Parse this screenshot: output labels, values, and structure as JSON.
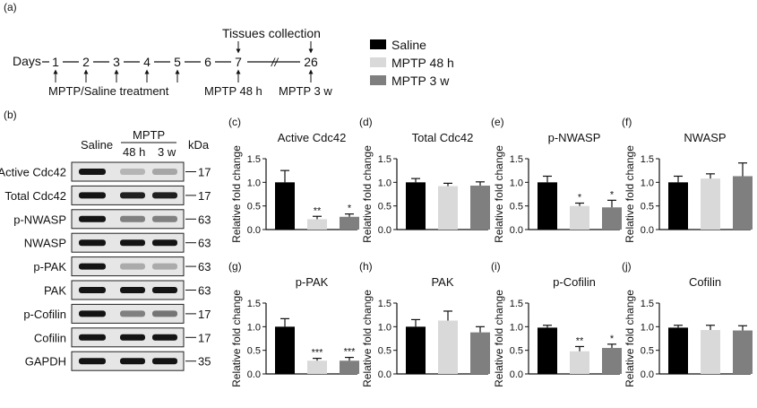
{
  "colors": {
    "saline": "#000000",
    "mptp48": "#d9d9d9",
    "mptp3w": "#7f7f7f",
    "axis": "#111111"
  },
  "timeline": {
    "panel_label": "(a)",
    "days_label": "Days",
    "days": [
      "1",
      "2",
      "3",
      "4",
      "5",
      "6",
      "7",
      "26"
    ],
    "break_mark": "//",
    "tissues_label": "Tissues collection",
    "treatment_label": "MPTP/Saline treatment",
    "mark_48h": "MPTP 48 h",
    "mark_3w": "MPTP 3 w"
  },
  "legend": [
    {
      "label": "Saline",
      "color": "#000000"
    },
    {
      "label": "MPTP 48 h",
      "color": "#d9d9d9"
    },
    {
      "label": "MPTP 3 w",
      "color": "#7f7f7f"
    }
  ],
  "blot": {
    "panel_label": "(b)",
    "col_saline": "Saline",
    "col_group": "MPTP",
    "col_48h": "48 h",
    "col_3w": "3 w",
    "kda_label": "kDa",
    "rows": [
      {
        "label": "Active Cdc42",
        "kda": "17",
        "intensity": [
          1.0,
          0.25,
          0.32
        ]
      },
      {
        "label": "Total Cdc42",
        "kda": "17",
        "intensity": [
          1.0,
          0.95,
          0.95
        ]
      },
      {
        "label": "p-NWASP",
        "kda": "63",
        "intensity": [
          1.0,
          0.5,
          0.5
        ]
      },
      {
        "label": "NWASP",
        "kda": "63",
        "intensity": [
          1.0,
          1.0,
          1.0
        ]
      },
      {
        "label": "p-PAK",
        "kda": "63",
        "intensity": [
          1.0,
          0.3,
          0.3
        ]
      },
      {
        "label": "PAK",
        "kda": "63",
        "intensity": [
          1.0,
          1.0,
          1.0
        ]
      },
      {
        "label": "p-Cofilin",
        "kda": "17",
        "intensity": [
          1.0,
          0.5,
          0.55
        ]
      },
      {
        "label": "Cofilin",
        "kda": "17",
        "intensity": [
          1.0,
          1.0,
          1.0
        ]
      },
      {
        "label": "GAPDH",
        "kda": "35",
        "intensity": [
          1.0,
          1.0,
          1.0
        ]
      }
    ]
  },
  "chart_data": [
    {
      "panel": "(c)",
      "type": "bar",
      "title": "Active Cdc42",
      "ylabel": "Relative fold change",
      "ylim": [
        0,
        1.5
      ],
      "yticks": [
        "0.0",
        "0.5",
        "1.0",
        "1.5"
      ],
      "categories": [
        "Saline",
        "MPTP 48 h",
        "MPTP 3 w"
      ],
      "values": [
        1.0,
        0.22,
        0.27
      ],
      "errors": [
        0.25,
        0.06,
        0.06
      ],
      "significance": [
        "",
        "**",
        "*"
      ]
    },
    {
      "panel": "(d)",
      "type": "bar",
      "title": "Total Cdc42",
      "ylabel": "Relative fold change",
      "ylim": [
        0,
        1.5
      ],
      "yticks": [
        "0.0",
        "0.5",
        "1.0",
        "1.5"
      ],
      "categories": [
        "Saline",
        "MPTP 48 h",
        "MPTP 3 w"
      ],
      "values": [
        1.0,
        0.92,
        0.93
      ],
      "errors": [
        0.08,
        0.06,
        0.08
      ],
      "significance": [
        "",
        "",
        ""
      ]
    },
    {
      "panel": "(e)",
      "type": "bar",
      "title": "p-NWASP",
      "ylabel": "Relative fold change",
      "ylim": [
        0,
        1.5
      ],
      "yticks": [
        "0.0",
        "0.5",
        "1.0",
        "1.5"
      ],
      "categories": [
        "Saline",
        "MPTP 48 h",
        "MPTP 3 w"
      ],
      "values": [
        1.0,
        0.5,
        0.47
      ],
      "errors": [
        0.13,
        0.06,
        0.15
      ],
      "significance": [
        "",
        "*",
        "*"
      ]
    },
    {
      "panel": "(f)",
      "type": "bar",
      "title": "NWASP",
      "ylabel": "Relative fold change",
      "ylim": [
        0,
        1.5
      ],
      "yticks": [
        "0.0",
        "0.5",
        "1.0",
        "1.5"
      ],
      "categories": [
        "Saline",
        "MPTP 48 h",
        "MPTP 3 w"
      ],
      "values": [
        1.0,
        1.08,
        1.13
      ],
      "errors": [
        0.13,
        0.1,
        0.28
      ],
      "significance": [
        "",
        "",
        ""
      ]
    },
    {
      "panel": "(g)",
      "type": "bar",
      "title": "p-PAK",
      "ylabel": "Relative fold change",
      "ylim": [
        0,
        1.5
      ],
      "yticks": [
        "0.0",
        "0.5",
        "1.0",
        "1.5"
      ],
      "categories": [
        "Saline",
        "MPTP 48 h",
        "MPTP 3 w"
      ],
      "values": [
        1.0,
        0.28,
        0.28
      ],
      "errors": [
        0.17,
        0.05,
        0.07
      ],
      "significance": [
        "",
        "***",
        "***"
      ]
    },
    {
      "panel": "(h)",
      "type": "bar",
      "title": "PAK",
      "ylabel": "Relative fold change",
      "ylim": [
        0,
        1.5
      ],
      "yticks": [
        "0.0",
        "0.5",
        "1.0",
        "1.5"
      ],
      "categories": [
        "Saline",
        "MPTP 48 h",
        "MPTP 3 w"
      ],
      "values": [
        1.0,
        1.13,
        0.88
      ],
      "errors": [
        0.15,
        0.2,
        0.12
      ],
      "significance": [
        "",
        "",
        ""
      ]
    },
    {
      "panel": "(i)",
      "type": "bar",
      "title": "p-Cofilin",
      "ylabel": "Relative fold change",
      "ylim": [
        0,
        1.5
      ],
      "yticks": [
        "0.0",
        "0.5",
        "1.0",
        "1.5"
      ],
      "categories": [
        "Saline",
        "MPTP 48 h",
        "MPTP 3 w"
      ],
      "values": [
        0.98,
        0.48,
        0.55
      ],
      "errors": [
        0.05,
        0.1,
        0.08
      ],
      "significance": [
        "",
        "**",
        "*"
      ]
    },
    {
      "panel": "(j)",
      "type": "bar",
      "title": "Cofilin",
      "ylabel": "Relative fold change",
      "ylim": [
        0,
        1.5
      ],
      "yticks": [
        "0.0",
        "0.5",
        "1.0",
        "1.5"
      ],
      "categories": [
        "Saline",
        "MPTP 48 h",
        "MPTP 3 w"
      ],
      "values": [
        0.98,
        0.93,
        0.92
      ],
      "errors": [
        0.05,
        0.1,
        0.1
      ],
      "significance": [
        "",
        "",
        ""
      ]
    }
  ]
}
